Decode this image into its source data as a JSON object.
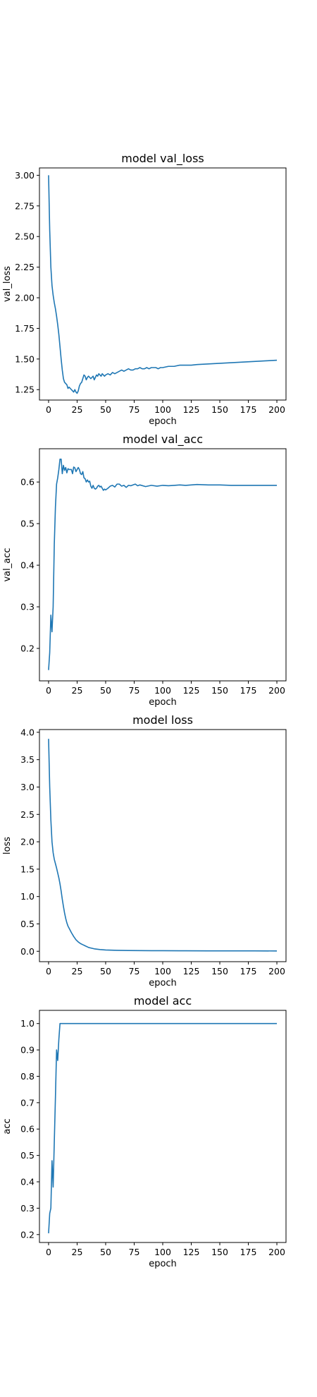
{
  "chart_data": [
    {
      "type": "line",
      "title": "model val_loss",
      "xlabel": "epoch",
      "ylabel": "val_loss",
      "grid": false,
      "xlim": [
        -8,
        208
      ],
      "ylim": [
        1.165,
        3.06
      ],
      "xticks": [
        0,
        25,
        50,
        75,
        100,
        125,
        150,
        175,
        200
      ],
      "yticks": [
        1.25,
        1.5,
        1.75,
        2.0,
        2.25,
        2.5,
        2.75,
        3.0
      ],
      "ytick_labels": [
        "1.25",
        "1.50",
        "1.75",
        "2.00",
        "2.25",
        "2.50",
        "2.75",
        "3.00"
      ],
      "color": "#1f77b4",
      "series": [
        {
          "x": [
            0,
            1,
            2,
            3,
            4,
            5,
            6,
            7,
            8,
            9,
            10,
            11,
            12,
            13,
            14,
            15,
            16,
            17,
            18,
            19,
            20,
            21,
            22,
            23,
            24,
            25,
            26,
            27,
            28,
            29,
            30,
            31,
            32,
            33,
            34,
            35,
            36,
            37,
            38,
            39,
            40,
            41,
            42,
            43,
            44,
            45,
            46,
            47,
            48,
            49,
            50,
            52,
            54,
            56,
            58,
            60,
            62,
            64,
            66,
            68,
            70,
            72,
            74,
            76,
            78,
            80,
            82,
            84,
            86,
            88,
            90,
            92,
            94,
            96,
            98,
            100,
            105,
            110,
            115,
            120,
            125,
            130,
            140,
            150,
            160,
            170,
            180,
            190,
            200
          ],
          "values": [
            3.0,
            2.55,
            2.25,
            2.1,
            2.02,
            1.96,
            1.91,
            1.85,
            1.78,
            1.7,
            1.6,
            1.5,
            1.41,
            1.34,
            1.31,
            1.3,
            1.29,
            1.26,
            1.27,
            1.26,
            1.25,
            1.24,
            1.23,
            1.25,
            1.23,
            1.22,
            1.24,
            1.28,
            1.3,
            1.31,
            1.34,
            1.37,
            1.36,
            1.33,
            1.35,
            1.36,
            1.35,
            1.34,
            1.35,
            1.36,
            1.33,
            1.35,
            1.37,
            1.36,
            1.38,
            1.37,
            1.36,
            1.38,
            1.37,
            1.36,
            1.37,
            1.38,
            1.37,
            1.39,
            1.38,
            1.39,
            1.4,
            1.41,
            1.4,
            1.41,
            1.42,
            1.41,
            1.41,
            1.42,
            1.42,
            1.43,
            1.42,
            1.42,
            1.43,
            1.42,
            1.43,
            1.43,
            1.43,
            1.42,
            1.43,
            1.43,
            1.44,
            1.44,
            1.45,
            1.45,
            1.45,
            1.455,
            1.46,
            1.465,
            1.47,
            1.475,
            1.48,
            1.485,
            1.49
          ]
        }
      ]
    },
    {
      "type": "line",
      "title": "model val_acc",
      "xlabel": "epoch",
      "ylabel": "val_acc",
      "grid": false,
      "xlim": [
        -8,
        208
      ],
      "ylim": [
        0.122,
        0.68
      ],
      "xticks": [
        0,
        25,
        50,
        75,
        100,
        125,
        150,
        175,
        200
      ],
      "yticks": [
        0.2,
        0.3,
        0.4,
        0.5,
        0.6
      ],
      "ytick_labels": [
        "0.2",
        "0.3",
        "0.4",
        "0.5",
        "0.6"
      ],
      "color": "#1f77b4",
      "series": [
        {
          "x": [
            0,
            1,
            2,
            3,
            4,
            5,
            6,
            7,
            8,
            9,
            10,
            11,
            12,
            13,
            14,
            15,
            16,
            17,
            18,
            19,
            20,
            21,
            22,
            23,
            24,
            25,
            26,
            27,
            28,
            29,
            30,
            31,
            32,
            33,
            34,
            35,
            36,
            37,
            38,
            39,
            40,
            41,
            42,
            43,
            44,
            45,
            46,
            47,
            48,
            49,
            50,
            52,
            54,
            56,
            58,
            60,
            62,
            64,
            66,
            68,
            70,
            72,
            74,
            76,
            78,
            80,
            85,
            90,
            95,
            100,
            105,
            110,
            115,
            120,
            125,
            130,
            140,
            150,
            160,
            170,
            180,
            190,
            200
          ],
          "values": [
            0.148,
            0.19,
            0.28,
            0.24,
            0.3,
            0.45,
            0.54,
            0.595,
            0.61,
            0.63,
            0.655,
            0.655,
            0.62,
            0.64,
            0.628,
            0.635,
            0.622,
            0.632,
            0.63,
            0.63,
            0.63,
            0.62,
            0.636,
            0.634,
            0.625,
            0.63,
            0.635,
            0.63,
            0.62,
            0.618,
            0.625,
            0.61,
            0.608,
            0.6,
            0.605,
            0.6,
            0.602,
            0.59,
            0.585,
            0.592,
            0.585,
            0.583,
            0.585,
            0.59,
            0.592,
            0.588,
            0.59,
            0.585,
            0.58,
            0.583,
            0.581,
            0.585,
            0.59,
            0.592,
            0.588,
            0.595,
            0.595,
            0.59,
            0.592,
            0.587,
            0.592,
            0.591,
            0.593,
            0.595,
            0.591,
            0.593,
            0.589,
            0.592,
            0.59,
            0.592,
            0.591,
            0.592,
            0.593,
            0.592,
            0.593,
            0.594,
            0.593,
            0.593,
            0.592,
            0.592,
            0.592,
            0.592,
            0.592
          ]
        }
      ]
    },
    {
      "type": "line",
      "title": "model loss",
      "xlabel": "epoch",
      "ylabel": "loss",
      "grid": false,
      "xlim": [
        -8,
        208
      ],
      "ylim": [
        -0.19,
        4.05
      ],
      "xticks": [
        0,
        25,
        50,
        75,
        100,
        125,
        150,
        175,
        200
      ],
      "yticks": [
        0.0,
        0.5,
        1.0,
        1.5,
        2.0,
        2.5,
        3.0,
        3.5,
        4.0
      ],
      "ytick_labels": [
        "0.0",
        "0.5",
        "1.0",
        "1.5",
        "2.0",
        "2.5",
        "3.0",
        "3.5",
        "4.0"
      ],
      "color": "#1f77b4",
      "series": [
        {
          "x": [
            0,
            1,
            2,
            3,
            4,
            5,
            6,
            7,
            8,
            9,
            10,
            11,
            12,
            13,
            14,
            15,
            16,
            17,
            18,
            19,
            20,
            22,
            24,
            26,
            28,
            30,
            32,
            35,
            40,
            45,
            50,
            55,
            60,
            70,
            80,
            90,
            100,
            120,
            140,
            160,
            180,
            200
          ],
          "values": [
            3.88,
            3.0,
            2.4,
            2.0,
            1.8,
            1.68,
            1.6,
            1.52,
            1.43,
            1.34,
            1.23,
            1.1,
            0.95,
            0.82,
            0.7,
            0.6,
            0.52,
            0.46,
            0.42,
            0.38,
            0.34,
            0.27,
            0.21,
            0.17,
            0.14,
            0.12,
            0.1,
            0.07,
            0.045,
            0.032,
            0.024,
            0.02,
            0.017,
            0.014,
            0.012,
            0.011,
            0.01,
            0.009,
            0.008,
            0.007,
            0.007,
            0.006
          ]
        }
      ]
    },
    {
      "type": "line",
      "title": "model acc",
      "xlabel": "epoch",
      "ylabel": "acc",
      "grid": false,
      "xlim": [
        -8,
        208
      ],
      "ylim": [
        0.17,
        1.05
      ],
      "xticks": [
        0,
        25,
        50,
        75,
        100,
        125,
        150,
        175,
        200
      ],
      "yticks": [
        0.2,
        0.3,
        0.4,
        0.5,
        0.6,
        0.7,
        0.8,
        0.9,
        1.0
      ],
      "ytick_labels": [
        "0.2",
        "0.3",
        "0.4",
        "0.5",
        "0.6",
        "0.7",
        "0.8",
        "0.9",
        "1.0"
      ],
      "color": "#1f77b4",
      "series": [
        {
          "x": [
            0,
            1,
            2,
            3,
            4,
            5,
            6,
            7,
            8,
            9,
            10,
            11,
            12,
            13,
            15,
            20,
            30,
            50,
            100,
            150,
            200
          ],
          "values": [
            0.205,
            0.28,
            0.3,
            0.48,
            0.38,
            0.55,
            0.72,
            0.9,
            0.86,
            0.94,
            1.0,
            1.0,
            1.0,
            1.0,
            1.0,
            1.0,
            1.0,
            1.0,
            1.0,
            1.0,
            1.0
          ]
        }
      ]
    }
  ]
}
